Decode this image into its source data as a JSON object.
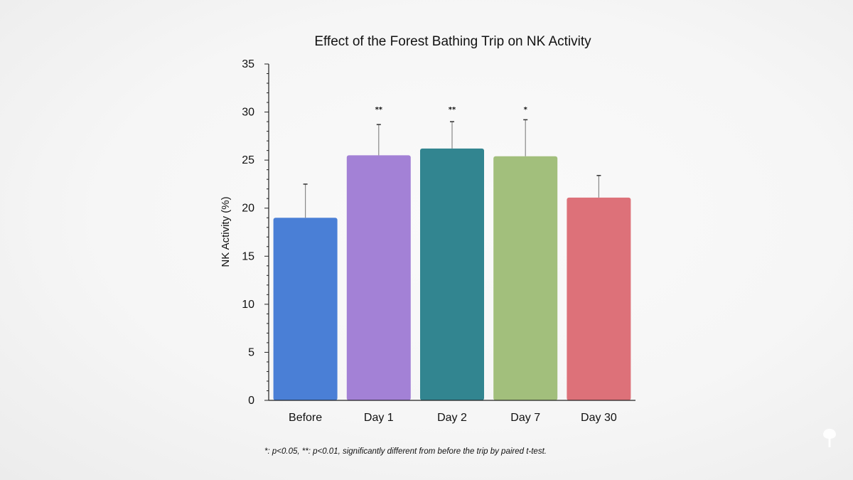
{
  "chart_data": {
    "type": "bar",
    "title": "Effect of the Forest Bathing Trip on NK Activity",
    "xlabel": "",
    "ylabel": "NK Activity (%)",
    "ylim": [
      0,
      35
    ],
    "ytick_step": 5,
    "yminor_step": 1,
    "grid": false,
    "categories": [
      "Before",
      "Day 1",
      "Day 2",
      "Day 7",
      "Day 30"
    ],
    "values": [
      19.0,
      25.5,
      26.2,
      25.4,
      21.1
    ],
    "error_upper": [
      22.5,
      28.7,
      29.0,
      29.2,
      23.4
    ],
    "significance": [
      "",
      "**",
      "**",
      "*",
      ""
    ],
    "colors": [
      "#4a7fd6",
      "#a381d6",
      "#328590",
      "#a2bf7c",
      "#dd7179"
    ],
    "footnote": "*: p<0.05, **: p<0.01, significantly different from before the trip by paired t-test."
  }
}
